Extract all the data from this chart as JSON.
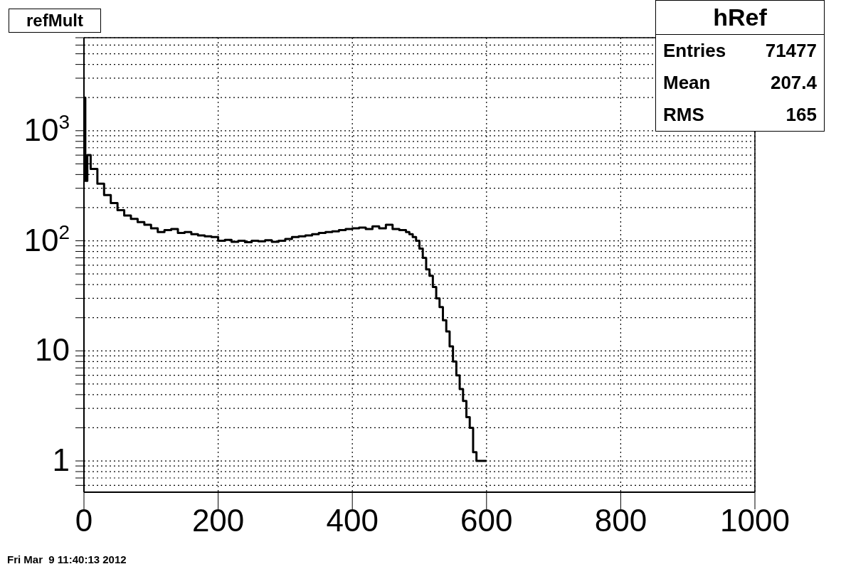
{
  "chart_data": {
    "type": "histogram",
    "title": "refMult",
    "color": "#000000",
    "bins": [
      0,
      2,
      5,
      10,
      20,
      30,
      40,
      50,
      60,
      70,
      80,
      90,
      100,
      110,
      120,
      130,
      140,
      150,
      160,
      170,
      180,
      190,
      200,
      210,
      220,
      230,
      240,
      250,
      260,
      270,
      280,
      290,
      300,
      310,
      320,
      330,
      340,
      350,
      360,
      370,
      380,
      390,
      400,
      410,
      420,
      430,
      440,
      450,
      460,
      470,
      480,
      485,
      490,
      495,
      500,
      505,
      510,
      515,
      520,
      525,
      530,
      535,
      540,
      545,
      550,
      555,
      560,
      565,
      570,
      575,
      580,
      585,
      590,
      595,
      600
    ],
    "values": [
      2000,
      350,
      600,
      450,
      330,
      260,
      220,
      190,
      170,
      158,
      148,
      140,
      130,
      120,
      125,
      128,
      118,
      120,
      115,
      112,
      110,
      108,
      100,
      102,
      98,
      100,
      97,
      100,
      99,
      101,
      98,
      100,
      104,
      108,
      110,
      112,
      115,
      118,
      120,
      122,
      125,
      128,
      130,
      132,
      128,
      135,
      130,
      140,
      128,
      125,
      120,
      115,
      108,
      100,
      85,
      70,
      55,
      48,
      38,
      30,
      25,
      19,
      15,
      11,
      8,
      6,
      4.5,
      3.5,
      2.5,
      2,
      1.2,
      1,
      1,
      1
    ],
    "log": "y",
    "grid": true,
    "xlim": [
      0,
      1000
    ],
    "xticks": [
      0,
      200,
      400,
      600,
      800,
      1000
    ],
    "ylim": [
      0.52,
      7000
    ],
    "yticks": [
      {
        "value": 0.6,
        "label": null
      },
      {
        "value": 0.7,
        "label": null
      },
      {
        "value": 0.8,
        "label": null
      },
      {
        "value": 0.9,
        "label": null
      },
      1,
      {
        "value": 2,
        "label": null
      },
      {
        "value": 3,
        "label": null
      },
      {
        "value": 4,
        "label": null
      },
      {
        "value": 5,
        "label": null
      },
      {
        "value": 6,
        "label": null
      },
      {
        "value": 7,
        "label": null
      },
      {
        "value": 8,
        "label": null
      },
      {
        "value": 9,
        "label": null
      },
      10,
      {
        "value": 20,
        "label": null
      },
      {
        "value": 30,
        "label": null
      },
      {
        "value": 40,
        "label": null
      },
      {
        "value": 50,
        "label": null
      },
      {
        "value": 60,
        "label": null
      },
      {
        "value": 70,
        "label": null
      },
      {
        "value": 80,
        "label": null
      },
      {
        "value": 90,
        "label": null
      },
      {
        "value": 100,
        "label": "10$^{2}$"
      },
      {
        "value": 200,
        "label": null
      },
      {
        "value": 300,
        "label": null
      },
      {
        "value": 400,
        "label": null
      },
      {
        "value": 500,
        "label": null
      },
      {
        "value": 600,
        "label": null
      },
      {
        "value": 700,
        "label": null
      },
      {
        "value": 800,
        "label": null
      },
      {
        "value": 900,
        "label": null
      },
      {
        "value": 1000,
        "label": "10$^{3}$"
      },
      {
        "value": 2000,
        "label": null
      },
      {
        "value": 3000,
        "label": null
      },
      {
        "value": 4000,
        "label": null
      },
      {
        "value": 5000,
        "label": null
      },
      {
        "value": 6000,
        "label": null
      },
      {
        "value": 7000,
        "label": null
      }
    ],
    "annotations": [
      "hRef",
      "Entries",
      "71477",
      "Mean",
      "207.4",
      "RMS",
      "165",
      "Fri Mar  9 11:40:13 2012"
    ]
  }
}
